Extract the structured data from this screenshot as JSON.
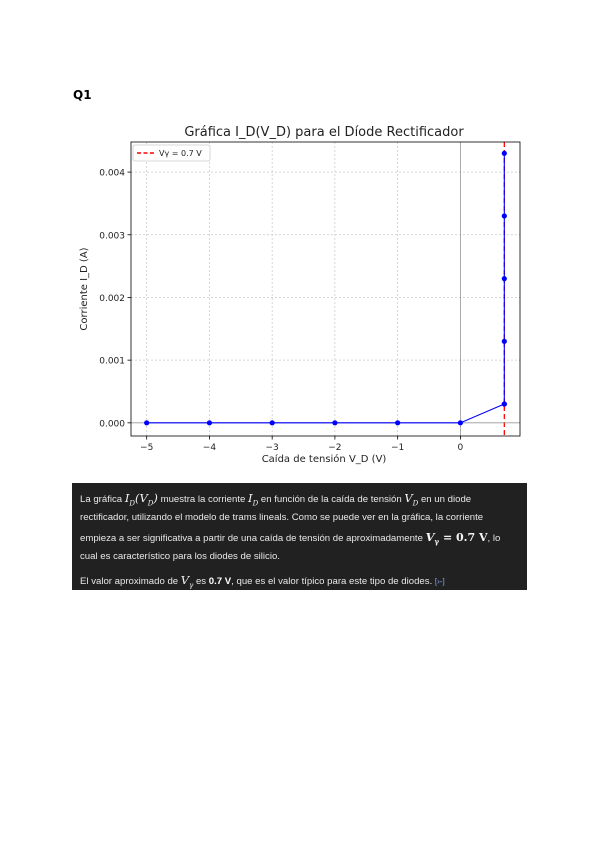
{
  "question_label": "Q1",
  "chart_data": {
    "type": "line",
    "title": "Gráfica I_D(V_D) para el Díode Rectificador",
    "xlabel": "Caída de tensión V_D (V)",
    "ylabel": "Corriente I_D (A)",
    "xlim": [
      -5.25,
      0.95
    ],
    "ylim": [
      -0.00021,
      0.00448
    ],
    "xticks": [
      -5,
      -4,
      -3,
      -2,
      -1,
      0
    ],
    "xtick_labels": [
      "−5",
      "−4",
      "−3",
      "−2",
      "−1",
      "0"
    ],
    "yticks": [
      0.0,
      0.001,
      0.002,
      0.003,
      0.004
    ],
    "ytick_labels": [
      "0.000",
      "0.001",
      "0.002",
      "0.003",
      "0.004"
    ],
    "grid": true,
    "legend_position": "top-left",
    "series": [
      {
        "name": "",
        "color": "#0000ff",
        "x": [
          -5,
          -4,
          -3,
          -2,
          -1,
          0,
          0.7
        ],
        "y": [
          0,
          0,
          0,
          0,
          0,
          0,
          0.0003
        ]
      },
      {
        "name": "",
        "color": "#0000ff",
        "x": [
          0.7,
          0.7,
          0.7,
          0.7,
          0.7
        ],
        "y": [
          0.0003,
          0.0013,
          0.0023,
          0.0033,
          0.0043
        ]
      }
    ],
    "reference_lines": [
      {
        "orientation": "vertical",
        "x": 0.7,
        "label": "Vγ = 0.7 V",
        "color": "#ff0000",
        "style": "dashed"
      },
      {
        "orientation": "vertical",
        "x": 0,
        "color": "#999999",
        "style": "solid"
      },
      {
        "orientation": "horizontal",
        "y": 0,
        "color": "#999999",
        "style": "solid"
      }
    ]
  },
  "explanation": {
    "p1_a": "La gráfica ",
    "p1_math1_main": "I",
    "p1_math1_sub": "D",
    "p1_math1_paren_open": "(V",
    "p1_math1_paren_sub": "D",
    "p1_math1_paren_close": ")",
    "p1_b": " muestra la corriente ",
    "p1_math2_main": "I",
    "p1_math2_sub": "D",
    "p1_c": " en función de la caída de tensión ",
    "p1_math3_main": "V",
    "p1_math3_sub": "D",
    "p1_d": " en un diode rectificador, utilizando el modelo de trams lineals. Como se puede ver en la gráfica, la corriente empieza a ser significativa a partir de una caída de tensión de aproximadamente ",
    "p1_math4_main": "V",
    "p1_math4_sub": "γ",
    "p1_math4_rest": " = 0.7 V",
    "p1_e": ", lo cual es característico para los diodes de silicio.",
    "p2_a": "El valor aproximado de ",
    "p2_math_main": "V",
    "p2_math_sub": "γ",
    "p2_b": " es ",
    "p2_bold": "0.7 V",
    "p2_c": ", que es el valor típico para este tipo de diodes. ",
    "p2_source": "[›-]"
  }
}
